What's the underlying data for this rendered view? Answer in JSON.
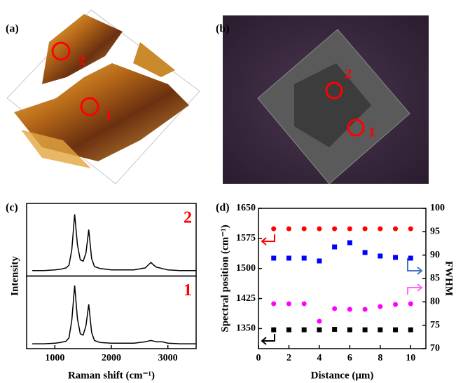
{
  "images": [
    {
      "label": "(a)",
      "markers": [
        "2",
        "1"
      ]
    },
    {
      "label": "(b)",
      "markers": [
        "2",
        "1"
      ]
    }
  ],
  "chart_data": [
    {
      "type": "line",
      "label": "(c)",
      "xlabel": "Raman shift (cm⁻¹)",
      "ylabel": "Intensity",
      "xlim": [
        500,
        3500
      ],
      "xticks": [
        1000,
        2000,
        3000
      ],
      "ylim": [
        0,
        1
      ],
      "x": [
        600,
        800,
        1000,
        1100,
        1200,
        1250,
        1300,
        1350,
        1400,
        1450,
        1500,
        1550,
        1600,
        1650,
        1700,
        1800,
        2000,
        2200,
        2400,
        2600,
        2650,
        2700,
        2750,
        2800,
        2900,
        3000,
        3200,
        3400,
        3500
      ],
      "series": [
        {
          "name": "2",
          "color": "#000000",
          "label_color": "#ff0000",
          "values": [
            0.04,
            0.04,
            0.05,
            0.06,
            0.08,
            0.12,
            0.35,
            0.88,
            0.42,
            0.2,
            0.18,
            0.3,
            0.65,
            0.22,
            0.1,
            0.07,
            0.05,
            0.05,
            0.05,
            0.08,
            0.12,
            0.16,
            0.12,
            0.09,
            0.07,
            0.05,
            0.04,
            0.04,
            0.04
          ]
        },
        {
          "name": "1",
          "color": "#000000",
          "label_color": "#ff0000",
          "values": [
            0.03,
            0.03,
            0.04,
            0.05,
            0.07,
            0.12,
            0.38,
            0.9,
            0.4,
            0.18,
            0.16,
            0.3,
            0.62,
            0.2,
            0.08,
            0.05,
            0.04,
            0.04,
            0.04,
            0.06,
            0.07,
            0.08,
            0.07,
            0.06,
            0.06,
            0.04,
            0.03,
            0.03,
            0.03
          ]
        }
      ]
    },
    {
      "type": "scatter",
      "label": "(d)",
      "xlabel": "Distance (μm)",
      "ylabel": "Spectral position (cm⁻¹)",
      "y2label": "FWHM",
      "xlim": [
        0,
        11
      ],
      "xticks": [
        0,
        2,
        4,
        6,
        8,
        10
      ],
      "ylim": [
        1300,
        1650
      ],
      "yticks": [
        1350,
        1425,
        1500,
        1575,
        1650
      ],
      "y2lim": [
        70,
        100
      ],
      "y2ticks": [
        70,
        75,
        80,
        85,
        90,
        95,
        100
      ],
      "x": [
        1,
        2,
        3,
        4,
        5,
        6,
        7,
        8,
        9,
        10
      ],
      "series": [
        {
          "color": "#ff0000",
          "marker": "circle",
          "axis": "y",
          "values": [
            1599,
            1599,
            1599,
            1599,
            1599,
            1599,
            1599,
            1599,
            1599,
            1599
          ]
        },
        {
          "color": "#000000",
          "marker": "square",
          "axis": "y",
          "values": [
            1347,
            1347,
            1347,
            1347,
            1348,
            1347,
            1347,
            1347,
            1347,
            1347
          ]
        },
        {
          "color": "#0000ff",
          "marker": "square",
          "axis": "y2",
          "values": [
            89.35,
            89.35,
            89.35,
            88.75,
            91.75,
            92.65,
            90.55,
            89.8,
            89.5,
            89.35
          ]
        },
        {
          "color": "#ff00ff",
          "marker": "circle",
          "axis": "y2",
          "values": [
            79.6,
            79.6,
            79.6,
            75.85,
            78.55,
            78.4,
            78.4,
            79,
            79.45,
            79.6
          ]
        }
      ]
    }
  ]
}
